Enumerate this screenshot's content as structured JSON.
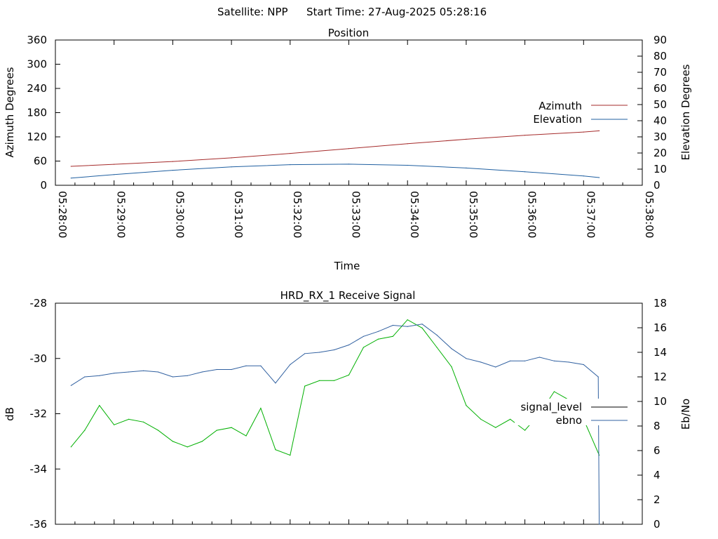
{
  "header": {
    "satellite_text": "Satellite: NPP",
    "start_time_text": "Start Time: 27-Aug-2025 05:28:16"
  },
  "colors": {
    "azimuth": "#a52a2a",
    "elevation": "#1f5fa0",
    "signal_level": "#00b000",
    "ebno": "#3060a0",
    "axis": "#000000"
  },
  "chart_data": [
    {
      "type": "line",
      "title": "Position",
      "xlabel": "Time",
      "ylabel": "Azimuth Degrees",
      "y2label": "Elevation Degrees",
      "xlim": [
        "05:28:00",
        "05:38:00"
      ],
      "ylim": [
        0,
        360
      ],
      "y2lim": [
        0,
        90
      ],
      "x_ticks": [
        "05:28:00",
        "05:29:00",
        "05:30:00",
        "05:31:00",
        "05:32:00",
        "05:33:00",
        "05:34:00",
        "05:35:00",
        "05:36:00",
        "05:37:00",
        "05:38:00"
      ],
      "y_ticks": [
        "0",
        "60",
        "120",
        "180",
        "240",
        "300",
        "360"
      ],
      "y2_ticks": [
        "0",
        "10",
        "20",
        "30",
        "40",
        "50",
        "60",
        "70",
        "80",
        "90"
      ],
      "legend": "right",
      "grid": false,
      "series": [
        {
          "name": "Azimuth",
          "axis": "left",
          "x": [
            "05:28:16",
            "05:29:00",
            "05:30:00",
            "05:31:00",
            "05:32:00",
            "05:33:00",
            "05:34:00",
            "05:35:00",
            "05:36:00",
            "05:37:00",
            "05:37:16"
          ],
          "values": [
            47,
            52,
            59,
            68,
            79,
            91,
            103,
            114,
            124,
            132,
            135
          ]
        },
        {
          "name": "Elevation",
          "axis": "right",
          "x": [
            "05:28:16",
            "05:29:00",
            "05:30:00",
            "05:31:00",
            "05:32:00",
            "05:33:00",
            "05:34:00",
            "05:35:00",
            "05:36:00",
            "05:37:00",
            "05:37:16"
          ],
          "values": [
            4.5,
            6.6,
            9.3,
            11.4,
            12.8,
            13.1,
            12.4,
            10.7,
            8.4,
            5.8,
            4.8
          ]
        }
      ]
    },
    {
      "type": "line",
      "title": "HRD_RX_1 Receive Signal",
      "ylabel": "dB",
      "y2label": "Eb/No",
      "xlim": [
        "05:28:00",
        "05:38:00"
      ],
      "ylim": [
        -36,
        -28
      ],
      "y2lim": [
        0,
        18
      ],
      "y_ticks": [
        "-28",
        "-30",
        "-32",
        "-34",
        "-36"
      ],
      "y2_ticks": [
        "0",
        "2",
        "4",
        "6",
        "8",
        "10",
        "12",
        "14",
        "16",
        "18"
      ],
      "legend": "right",
      "grid": false,
      "series": [
        {
          "name": "signal_level",
          "axis": "left",
          "x": [
            "05:28:16",
            "05:28:30",
            "05:28:45",
            "05:29:00",
            "05:29:15",
            "05:29:30",
            "05:29:45",
            "05:30:00",
            "05:30:15",
            "05:30:30",
            "05:30:45",
            "05:31:00",
            "05:31:15",
            "05:31:30",
            "05:31:45",
            "05:32:00",
            "05:32:15",
            "05:32:30",
            "05:32:45",
            "05:33:00",
            "05:33:15",
            "05:33:30",
            "05:33:45",
            "05:34:00",
            "05:34:15",
            "05:34:30",
            "05:34:45",
            "05:35:00",
            "05:35:15",
            "05:35:30",
            "05:35:45",
            "05:36:00",
            "05:36:15",
            "05:36:30",
            "05:36:45",
            "05:37:00",
            "05:37:16"
          ],
          "values": [
            -33.2,
            -32.6,
            -31.7,
            -32.4,
            -32.2,
            -32.3,
            -32.6,
            -33.0,
            -33.2,
            -33.0,
            -32.6,
            -32.5,
            -32.8,
            -31.8,
            -33.3,
            -33.5,
            -31.0,
            -30.8,
            -30.8,
            -30.6,
            -29.6,
            -29.3,
            -29.2,
            -28.6,
            -28.9,
            -29.6,
            -30.3,
            -31.7,
            -32.2,
            -32.5,
            -32.2,
            -32.6,
            -32.0,
            -31.2,
            -31.5,
            -32.2,
            -33.5
          ]
        },
        {
          "name": "ebno",
          "axis": "right",
          "x": [
            "05:28:16",
            "05:28:30",
            "05:28:45",
            "05:29:00",
            "05:29:15",
            "05:29:30",
            "05:29:45",
            "05:30:00",
            "05:30:15",
            "05:30:30",
            "05:30:45",
            "05:31:00",
            "05:31:15",
            "05:31:30",
            "05:31:45",
            "05:32:00",
            "05:32:15",
            "05:32:30",
            "05:32:45",
            "05:33:00",
            "05:33:15",
            "05:33:30",
            "05:33:45",
            "05:34:00",
            "05:34:15",
            "05:34:30",
            "05:34:45",
            "05:35:00",
            "05:35:15",
            "05:35:30",
            "05:35:45",
            "05:36:00",
            "05:36:15",
            "05:36:30",
            "05:36:45",
            "05:37:00",
            "05:37:15",
            "05:37:16"
          ],
          "values": [
            11.3,
            12.0,
            12.1,
            12.3,
            12.4,
            12.5,
            12.4,
            12.0,
            12.1,
            12.4,
            12.6,
            12.6,
            12.9,
            12.9,
            11.5,
            13.0,
            13.9,
            14.0,
            14.2,
            14.6,
            15.3,
            15.7,
            16.2,
            16.1,
            16.3,
            15.4,
            14.3,
            13.5,
            13.2,
            12.8,
            13.3,
            13.3,
            13.6,
            13.3,
            13.2,
            13.0,
            12.0,
            0.0
          ]
        }
      ]
    }
  ]
}
